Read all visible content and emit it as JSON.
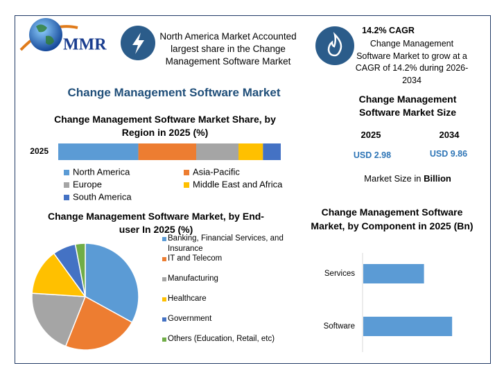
{
  "logo": {
    "text": "MMR"
  },
  "highlights": [
    {
      "text": "North America Market Accounted largest share in the Change Management Software Market"
    },
    {
      "title": "14.2% CAGR",
      "text": "Change Management Software Market to grow at a CAGR of 14.2% during 2026-2034"
    }
  ],
  "title": "Change Management Software Market",
  "market_size": {
    "title": "Change Management Software Market Size",
    "years": [
      "2025",
      "2034"
    ],
    "values": [
      "USD 2.98",
      "USD 9.86"
    ],
    "note": "Market Size in",
    "note_unit": "Billion"
  },
  "chart_data": [
    {
      "type": "stacked_bar",
      "orientation": "horizontal",
      "title": "Change Management Software Market Share, by Region in 2025 (%)",
      "categories": [
        "2025"
      ],
      "xlim": [
        0,
        100
      ],
      "series": [
        {
          "name": "North America",
          "color": "#5b9bd5",
          "values": [
            36
          ]
        },
        {
          "name": "Asia-Pacific",
          "color": "#ed7d31",
          "values": [
            26
          ]
        },
        {
          "name": "Europe",
          "color": "#a5a5a5",
          "values": [
            19
          ]
        },
        {
          "name": "Middle East and Africa",
          "color": "#ffc000",
          "values": [
            11
          ]
        },
        {
          "name": "South America",
          "color": "#4472c4",
          "values": [
            8
          ]
        }
      ]
    },
    {
      "type": "pie",
      "title": "Change Management Software Market, by End-user In 2025 (%)",
      "categories": [
        "Banking, Financial Services, and Insurance",
        "IT and Telecom",
        "Manufacturing",
        "Healthcare",
        "Government",
        "Others (Education, Retail, etc)"
      ],
      "values": [
        33,
        23,
        20,
        14,
        7,
        3
      ],
      "colors": [
        "#5b9bd5",
        "#ed7d31",
        "#a5a5a5",
        "#ffc000",
        "#4472c4",
        "#70ad47"
      ]
    },
    {
      "type": "bar",
      "orientation": "horizontal",
      "title": "Change Management Software Market, by Component in 2025 (Bn)",
      "categories": [
        "Services",
        "Software"
      ],
      "values": [
        1.21,
        1.77
      ],
      "color": "#5b9bd5",
      "xlim": [
        0,
        2.5
      ]
    }
  ]
}
